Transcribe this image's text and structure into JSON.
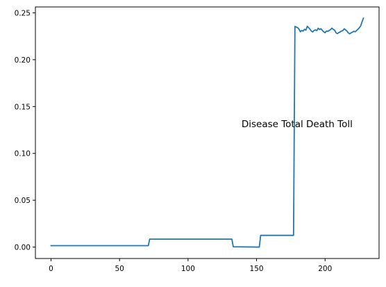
{
  "chart_data": {
    "type": "line",
    "annotations": [
      {
        "text": "Disease Total Death Toll",
        "x": 139,
        "y": 0.128
      }
    ],
    "xlim": [
      -11.4,
      239.4
    ],
    "ylim": [
      -0.0122,
      0.2563
    ],
    "x_ticks": [
      0,
      50,
      100,
      150,
      200
    ],
    "y_ticks": [
      0.0,
      0.05,
      0.1,
      0.15,
      0.2,
      0.25
    ],
    "grid": false,
    "legend": "none",
    "colors": {
      "line": "#1f77b4",
      "axes": "#000000"
    },
    "series": [
      {
        "x": [
          0,
          71,
          72,
          132,
          133,
          152,
          153,
          177,
          178,
          179,
          180,
          181,
          182,
          183,
          184,
          185,
          186,
          187,
          188,
          189,
          190,
          191,
          192,
          193,
          194,
          195,
          196,
          197,
          198,
          199,
          200,
          201,
          202,
          203,
          204,
          205,
          206,
          207,
          208,
          209,
          210,
          211,
          212,
          213,
          214,
          215,
          216,
          217,
          218,
          219,
          220,
          221,
          222,
          223,
          224,
          225,
          226,
          227,
          228
        ],
        "y": [
          0.0015,
          0.0015,
          0.0085,
          0.0085,
          0.0003,
          0.0,
          0.0125,
          0.0125,
          0.2355,
          0.2348,
          0.2342,
          0.2325,
          0.2298,
          0.2312,
          0.2305,
          0.2325,
          0.2315,
          0.2356,
          0.2342,
          0.2325,
          0.2305,
          0.2296,
          0.2313,
          0.2318,
          0.231,
          0.2336,
          0.2322,
          0.2331,
          0.2313,
          0.2298,
          0.2288,
          0.2306,
          0.2303,
          0.2312,
          0.2321,
          0.2337,
          0.2323,
          0.2315,
          0.2287,
          0.2278,
          0.2289,
          0.2296,
          0.2306,
          0.2311,
          0.233,
          0.2318,
          0.2304,
          0.2286,
          0.2276,
          0.2287,
          0.2294,
          0.2303,
          0.2298,
          0.2312,
          0.2325,
          0.2341,
          0.236,
          0.2405,
          0.2443
        ]
      }
    ]
  }
}
